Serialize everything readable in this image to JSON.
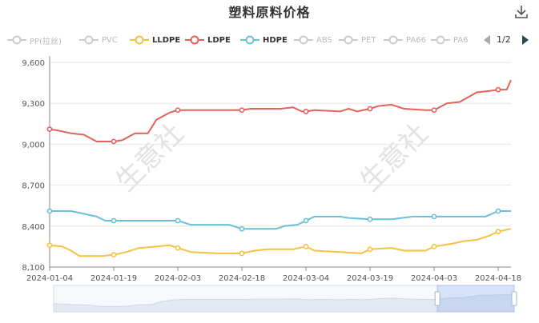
{
  "title": "塑料原料价格",
  "icons": {
    "download": "download-icon",
    "prev": "caret-left-icon",
    "next": "caret-right-icon"
  },
  "legend": [
    {
      "label": "PP(拉丝)",
      "color": "#cccccc",
      "active": false
    },
    {
      "label": "PVC",
      "color": "#cccccc",
      "active": false
    },
    {
      "label": "LLDPE",
      "color": "#f5c242",
      "active": true
    },
    {
      "label": "LDPE",
      "color": "#e5615b",
      "active": true
    },
    {
      "label": "HDPE",
      "color": "#6bbfd6",
      "active": true
    },
    {
      "label": "ABS",
      "color": "#cccccc",
      "active": false
    },
    {
      "label": "PET",
      "color": "#cccccc",
      "active": false
    },
    {
      "label": "PA66",
      "color": "#cccccc",
      "active": false
    },
    {
      "label": "PA6",
      "color": "#cccccc",
      "active": false
    }
  ],
  "pager": {
    "text": "1/2"
  },
  "watermark": "生意社",
  "chart_data": {
    "type": "line",
    "x_dates": [
      "2024-01-04",
      "2024-01-19",
      "2024-02-03",
      "2024-02-18",
      "2024-03-04",
      "2024-03-19",
      "2024-04-03",
      "2024-04-18"
    ],
    "x_range": [
      "2024-01-04",
      "2024-04-21"
    ],
    "ylim": [
      8100,
      9600
    ],
    "y_ticks": [
      8100,
      8400,
      8700,
      9000,
      9300,
      9600
    ],
    "y_tick_labels": [
      "8,100",
      "8,400",
      "8,700",
      "9,000",
      "9,300",
      "9,600"
    ],
    "x_tick_labels": [
      "2024-01-04",
      "2024-01-19",
      "2024-02-03",
      "2024-02-18",
      "2024-03-04",
      "2024-03-19",
      "2024-04-03",
      "2024-04-18"
    ],
    "grid": "horizontal",
    "series": [
      {
        "name": "LDPE",
        "color": "#e5615b",
        "points": [
          [
            "2024-01-04",
            9110
          ],
          [
            "2024-01-06",
            9100
          ],
          [
            "2024-01-09",
            9080
          ],
          [
            "2024-01-12",
            9070
          ],
          [
            "2024-01-15",
            9020
          ],
          [
            "2024-01-19",
            9020
          ],
          [
            "2024-01-21",
            9030
          ],
          [
            "2024-01-24",
            9080
          ],
          [
            "2024-01-27",
            9080
          ],
          [
            "2024-01-29",
            9180
          ],
          [
            "2024-02-01",
            9230
          ],
          [
            "2024-02-03",
            9250
          ],
          [
            "2024-02-10",
            9250
          ],
          [
            "2024-02-18",
            9250
          ],
          [
            "2024-02-20",
            9260
          ],
          [
            "2024-02-27",
            9260
          ],
          [
            "2024-03-01",
            9270
          ],
          [
            "2024-03-03",
            9240
          ],
          [
            "2024-03-04",
            9240
          ],
          [
            "2024-03-06",
            9250
          ],
          [
            "2024-03-12",
            9240
          ],
          [
            "2024-03-14",
            9260
          ],
          [
            "2024-03-16",
            9240
          ],
          [
            "2024-03-19",
            9260
          ],
          [
            "2024-03-21",
            9280
          ],
          [
            "2024-03-24",
            9290
          ],
          [
            "2024-03-27",
            9260
          ],
          [
            "2024-04-01",
            9250
          ],
          [
            "2024-04-03",
            9250
          ],
          [
            "2024-04-06",
            9300
          ],
          [
            "2024-04-09",
            9310
          ],
          [
            "2024-04-13",
            9380
          ],
          [
            "2024-04-16",
            9390
          ],
          [
            "2024-04-18",
            9400
          ],
          [
            "2024-04-20",
            9400
          ],
          [
            "2024-04-21",
            9470
          ]
        ]
      },
      {
        "name": "HDPE",
        "color": "#6bbfd6",
        "points": [
          [
            "2024-01-04",
            8510
          ],
          [
            "2024-01-09",
            8510
          ],
          [
            "2024-01-12",
            8490
          ],
          [
            "2024-01-15",
            8470
          ],
          [
            "2024-01-17",
            8440
          ],
          [
            "2024-01-19",
            8440
          ],
          [
            "2024-02-01",
            8440
          ],
          [
            "2024-02-03",
            8440
          ],
          [
            "2024-02-06",
            8410
          ],
          [
            "2024-02-12",
            8410
          ],
          [
            "2024-02-15",
            8410
          ],
          [
            "2024-02-18",
            8380
          ],
          [
            "2024-02-26",
            8380
          ],
          [
            "2024-02-28",
            8400
          ],
          [
            "2024-03-02",
            8410
          ],
          [
            "2024-03-04",
            8440
          ],
          [
            "2024-03-06",
            8470
          ],
          [
            "2024-03-12",
            8470
          ],
          [
            "2024-03-14",
            8460
          ],
          [
            "2024-03-19",
            8450
          ],
          [
            "2024-03-24",
            8450
          ],
          [
            "2024-03-29",
            8470
          ],
          [
            "2024-04-01",
            8470
          ],
          [
            "2024-04-03",
            8470
          ],
          [
            "2024-04-10",
            8470
          ],
          [
            "2024-04-15",
            8470
          ],
          [
            "2024-04-18",
            8510
          ],
          [
            "2024-04-21",
            8510
          ]
        ]
      },
      {
        "name": "LLDPE",
        "color": "#f5c242",
        "points": [
          [
            "2024-01-04",
            8260
          ],
          [
            "2024-01-07",
            8250
          ],
          [
            "2024-01-09",
            8220
          ],
          [
            "2024-01-11",
            8180
          ],
          [
            "2024-01-16",
            8180
          ],
          [
            "2024-01-19",
            8190
          ],
          [
            "2024-01-22",
            8210
          ],
          [
            "2024-01-25",
            8240
          ],
          [
            "2024-01-29",
            8250
          ],
          [
            "2024-02-01",
            8260
          ],
          [
            "2024-02-03",
            8240
          ],
          [
            "2024-02-06",
            8210
          ],
          [
            "2024-02-12",
            8200
          ],
          [
            "2024-02-18",
            8200
          ],
          [
            "2024-02-21",
            8220
          ],
          [
            "2024-02-24",
            8230
          ],
          [
            "2024-03-01",
            8230
          ],
          [
            "2024-03-04",
            8250
          ],
          [
            "2024-03-06",
            8220
          ],
          [
            "2024-03-12",
            8210
          ],
          [
            "2024-03-17",
            8200
          ],
          [
            "2024-03-19",
            8230
          ],
          [
            "2024-03-24",
            8240
          ],
          [
            "2024-03-27",
            8220
          ],
          [
            "2024-04-01",
            8220
          ],
          [
            "2024-04-03",
            8250
          ],
          [
            "2024-04-07",
            8270
          ],
          [
            "2024-04-10",
            8290
          ],
          [
            "2024-04-13",
            8300
          ],
          [
            "2024-04-16",
            8330
          ],
          [
            "2024-04-18",
            8360
          ],
          [
            "2024-04-21",
            8380
          ]
        ]
      }
    ],
    "markers": [
      {
        "series": "LDPE",
        "dates": [
          "2024-01-04",
          "2024-01-19",
          "2024-02-03",
          "2024-02-18",
          "2024-03-04",
          "2024-03-19",
          "2024-04-03",
          "2024-04-18"
        ]
      },
      {
        "series": "HDPE",
        "dates": [
          "2024-01-04",
          "2024-01-19",
          "2024-02-03",
          "2024-02-18",
          "2024-03-04",
          "2024-03-19",
          "2024-04-03",
          "2024-04-18"
        ]
      },
      {
        "series": "LLDPE",
        "dates": [
          "2024-01-04",
          "2024-01-19",
          "2024-02-03",
          "2024-02-18",
          "2024-03-04",
          "2024-03-19",
          "2024-04-03",
          "2024-04-18"
        ]
      }
    ],
    "zoom_window": [
      "2024-04-03",
      "2024-04-21"
    ]
  }
}
